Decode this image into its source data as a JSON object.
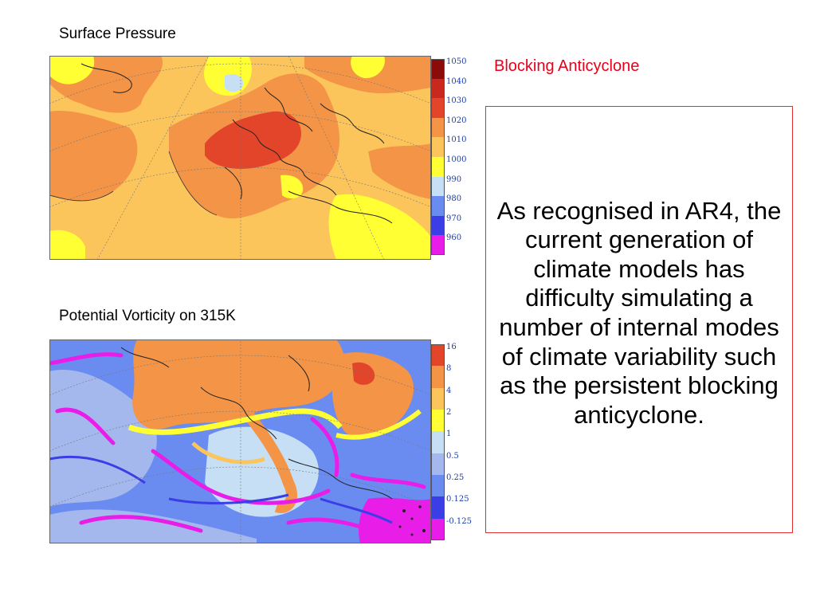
{
  "slide": {
    "heading": "Blocking Anticyclone",
    "body_text": "As recognised in AR4, the current generation of climate models has difficulty simulating a number of internal modes of climate variability such as the  persistent blocking anticyclone."
  },
  "maps": {
    "surface_pressure": {
      "title": "Surface Pressure",
      "colorbar": {
        "ticks": [
          "1050",
          "1040",
          "1030",
          "1020",
          "1010",
          "1000",
          "990",
          "980",
          "970",
          "960"
        ],
        "colors": [
          "#8b0a0a",
          "#c8281e",
          "#e2452a",
          "#f39446",
          "#fcc55c",
          "#ffff33",
          "#c6dff5",
          "#6a8cf0",
          "#3b3de6",
          "#e81ee8"
        ]
      }
    },
    "potential_vorticity": {
      "title": "Potential Vorticity on 315K",
      "colorbar": {
        "ticks": [
          "16",
          "8",
          "4",
          "2",
          "1",
          "0.5",
          "0.25",
          "0.125",
          "-0.125"
        ],
        "colors": [
          "#e2452a",
          "#f39446",
          "#fcc55c",
          "#ffff33",
          "#c6dff5",
          "#a4b8ee",
          "#6a8cf0",
          "#3b3de6",
          "#e81ee8"
        ]
      }
    }
  },
  "theme": {
    "heading_color": "#e8001a",
    "box_border_color": "#e03030",
    "colorbar_label_color": "#1a3ea8"
  }
}
